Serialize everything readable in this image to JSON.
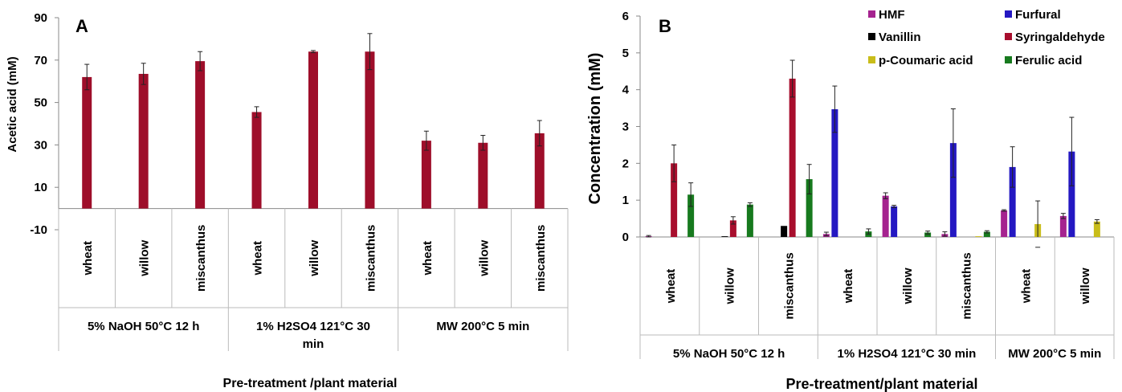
{
  "chart_data": [
    {
      "type": "bar",
      "panel_label": "A",
      "xlabel": "Pre-treatment /plant material",
      "ylabel": "Acetic acid (mM)",
      "ylim": [
        -10,
        90
      ],
      "yticks": [
        -10,
        10,
        30,
        50,
        70,
        90
      ],
      "ytick_labels": [
        "-10",
        "10",
        "30",
        "50",
        "70",
        "90"
      ],
      "grid": false,
      "bar_color": "#9e0e2a",
      "categories": [
        "wheat",
        "willow",
        "miscanthus",
        "wheat",
        "willow",
        "miscanthus",
        "wheat",
        "willow",
        "miscanthus"
      ],
      "groups": [
        {
          "label": "5% NaOH 50°C 12 h",
          "span": 3
        },
        {
          "label": "1% H2SO4 121°C 30 min",
          "span": 3
        },
        {
          "label": "MW 200°C 5 min",
          "span": 3
        }
      ],
      "series": [
        {
          "values": [
            62,
            63.5,
            69.5,
            45.5,
            74,
            74,
            32,
            31,
            35.5
          ],
          "errors": [
            6,
            5,
            4.5,
            2.5,
            0.5,
            8.5,
            4.5,
            3.5,
            6
          ]
        }
      ]
    },
    {
      "type": "bar",
      "panel_label": "B",
      "xlabel": "Pre-treatment/plant material",
      "ylabel": "Concentration (mM)",
      "ylim": [
        0,
        6
      ],
      "yticks": [
        0,
        1,
        2,
        3,
        4,
        5,
        6
      ],
      "ytick_labels": [
        "0",
        "1",
        "2",
        "3",
        "4",
        "5",
        "6"
      ],
      "grid": false,
      "legend_position": "top-right",
      "categories": [
        "wheat",
        "willow",
        "miscanthus",
        "wheat",
        "willow",
        "miscanthus",
        "wheat",
        "willow"
      ],
      "groups": [
        {
          "label": "5% NaOH 50°C 12 h",
          "span": 3
        },
        {
          "label": "1% H2SO4 121°C 30 min",
          "span": 3
        },
        {
          "label": "MW 200°C 5 min",
          "span": 2
        }
      ],
      "series": [
        {
          "name": "HMF",
          "color": "#a5238f",
          "values": [
            0.02,
            0,
            0,
            0.08,
            1.12,
            0.08,
            0.72,
            0.57
          ],
          "errors": [
            0.02,
            0,
            0,
            0.05,
            0.08,
            0.06,
            0.02,
            0.07
          ]
        },
        {
          "name": "Furfural",
          "color": "#2418c2",
          "values": [
            0,
            0,
            0,
            3.47,
            0.83,
            2.55,
            1.9,
            2.32
          ],
          "errors": [
            0,
            0,
            0,
            0.63,
            0.03,
            0.93,
            0.55,
            0.93
          ]
        },
        {
          "name": "Vanillin",
          "color": "#000000",
          "values": [
            0,
            0.02,
            0.3,
            0,
            0,
            0,
            0,
            0
          ],
          "errors": [
            0,
            0,
            0,
            0,
            0,
            0,
            0,
            0
          ]
        },
        {
          "name": "Syringaldehyde",
          "color": "#a80e2d",
          "values": [
            2.0,
            0.45,
            4.3,
            0,
            0,
            0,
            0,
            0
          ],
          "errors": [
            0.5,
            0.1,
            0.5,
            0,
            0,
            0,
            0,
            0
          ]
        },
        {
          "name": "p-Coumaric acid",
          "color": "#c9bd1a",
          "values": [
            0,
            0,
            0,
            0,
            0,
            0.02,
            0.35,
            0.42
          ],
          "errors": [
            0,
            0,
            0,
            0,
            0,
            0,
            0.63,
            0.05
          ]
        },
        {
          "name": "Ferulic acid",
          "color": "#177a1e",
          "values": [
            1.15,
            0.88,
            1.57,
            0.15,
            0.12,
            0.14,
            0,
            0
          ],
          "errors": [
            0.32,
            0.05,
            0.4,
            0.07,
            0.04,
            0.03,
            0,
            0
          ]
        }
      ]
    }
  ]
}
